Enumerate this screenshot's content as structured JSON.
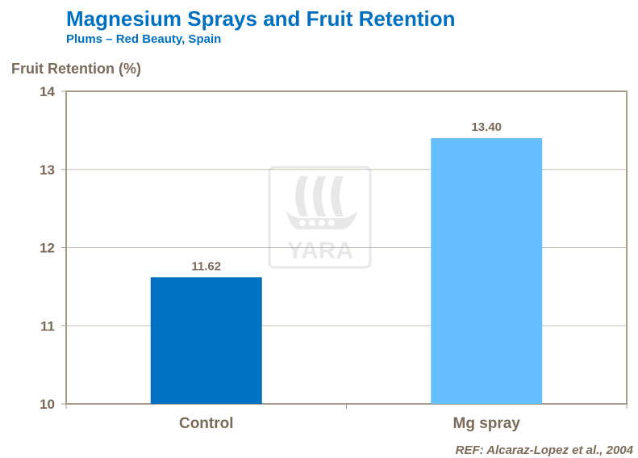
{
  "title": "Magnesium Sprays and Fruit Retention",
  "subtitle": "Plums – Red Beauty, Spain",
  "reference": "REF: Alcaraz-Lopez et al., 2004",
  "watermark": "YARA",
  "chart_data": {
    "type": "bar",
    "title": "Magnesium Sprays and Fruit Retention",
    "subtitle": "Plums – Red Beauty, Spain",
    "ylabel": "Fruit Retention  (%)",
    "xlabel": "",
    "categories": [
      "Control",
      "Mg spray"
    ],
    "values": [
      11.62,
      13.4
    ],
    "data_labels": [
      "11.62",
      "13.40"
    ],
    "ylim": [
      10,
      14
    ],
    "yticks": [
      10,
      11,
      12,
      13,
      14
    ],
    "grid": true,
    "colors": [
      "#0070c0",
      "#66bfff"
    ],
    "axis_color": "#a89c8c",
    "text_color": "#7a6a58"
  }
}
